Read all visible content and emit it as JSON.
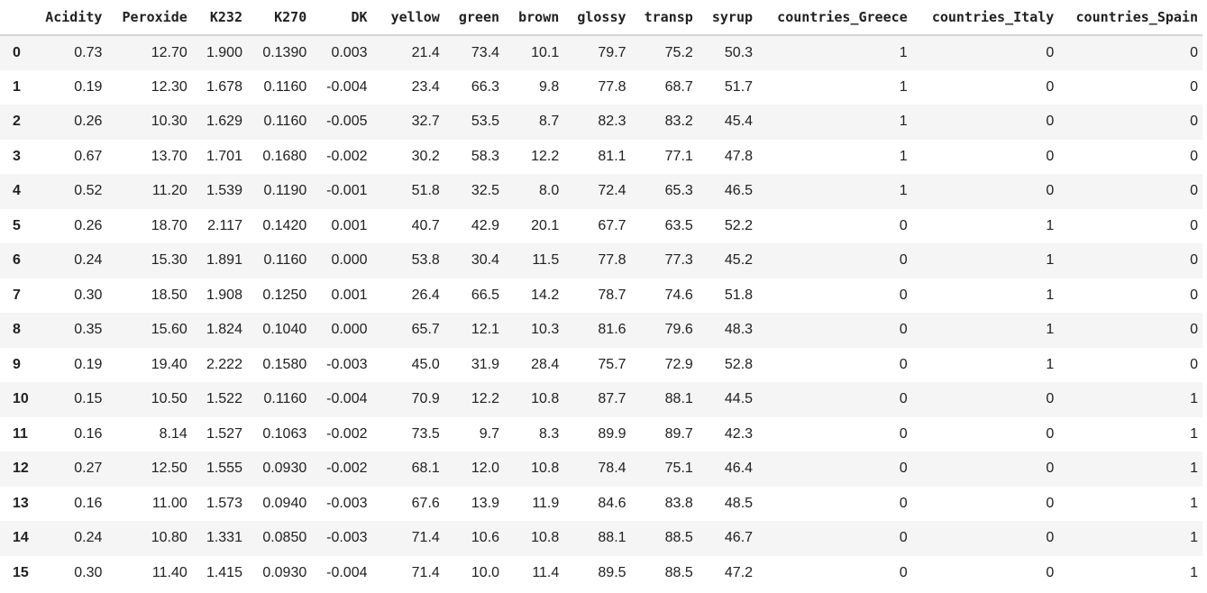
{
  "columns": [
    "",
    "Acidity",
    "Peroxide",
    "K232",
    "K270",
    "DK",
    "yellow",
    "green",
    "brown",
    "glossy",
    "transp",
    "syrup",
    "countries_Greece",
    "countries_Italy",
    "countries_Spain"
  ],
  "rows": [
    {
      "index": "0",
      "cells": [
        "0.73",
        "12.70",
        "1.900",
        "0.1390",
        "0.003",
        "21.4",
        "73.4",
        "10.1",
        "79.7",
        "75.2",
        "50.3",
        "1",
        "0",
        "0"
      ]
    },
    {
      "index": "1",
      "cells": [
        "0.19",
        "12.30",
        "1.678",
        "0.1160",
        "-0.004",
        "23.4",
        "66.3",
        "9.8",
        "77.8",
        "68.7",
        "51.7",
        "1",
        "0",
        "0"
      ]
    },
    {
      "index": "2",
      "cells": [
        "0.26",
        "10.30",
        "1.629",
        "0.1160",
        "-0.005",
        "32.7",
        "53.5",
        "8.7",
        "82.3",
        "83.2",
        "45.4",
        "1",
        "0",
        "0"
      ]
    },
    {
      "index": "3",
      "cells": [
        "0.67",
        "13.70",
        "1.701",
        "0.1680",
        "-0.002",
        "30.2",
        "58.3",
        "12.2",
        "81.1",
        "77.1",
        "47.8",
        "1",
        "0",
        "0"
      ]
    },
    {
      "index": "4",
      "cells": [
        "0.52",
        "11.20",
        "1.539",
        "0.1190",
        "-0.001",
        "51.8",
        "32.5",
        "8.0",
        "72.4",
        "65.3",
        "46.5",
        "1",
        "0",
        "0"
      ]
    },
    {
      "index": "5",
      "cells": [
        "0.26",
        "18.70",
        "2.117",
        "0.1420",
        "0.001",
        "40.7",
        "42.9",
        "20.1",
        "67.7",
        "63.5",
        "52.2",
        "0",
        "1",
        "0"
      ]
    },
    {
      "index": "6",
      "cells": [
        "0.24",
        "15.30",
        "1.891",
        "0.1160",
        "0.000",
        "53.8",
        "30.4",
        "11.5",
        "77.8",
        "77.3",
        "45.2",
        "0",
        "1",
        "0"
      ]
    },
    {
      "index": "7",
      "cells": [
        "0.30",
        "18.50",
        "1.908",
        "0.1250",
        "0.001",
        "26.4",
        "66.5",
        "14.2",
        "78.7",
        "74.6",
        "51.8",
        "0",
        "1",
        "0"
      ]
    },
    {
      "index": "8",
      "cells": [
        "0.35",
        "15.60",
        "1.824",
        "0.1040",
        "0.000",
        "65.7",
        "12.1",
        "10.3",
        "81.6",
        "79.6",
        "48.3",
        "0",
        "1",
        "0"
      ]
    },
    {
      "index": "9",
      "cells": [
        "0.19",
        "19.40",
        "2.222",
        "0.1580",
        "-0.003",
        "45.0",
        "31.9",
        "28.4",
        "75.7",
        "72.9",
        "52.8",
        "0",
        "1",
        "0"
      ]
    },
    {
      "index": "10",
      "cells": [
        "0.15",
        "10.50",
        "1.522",
        "0.1160",
        "-0.004",
        "70.9",
        "12.2",
        "10.8",
        "87.7",
        "88.1",
        "44.5",
        "0",
        "0",
        "1"
      ]
    },
    {
      "index": "11",
      "cells": [
        "0.16",
        "8.14",
        "1.527",
        "0.1063",
        "-0.002",
        "73.5",
        "9.7",
        "8.3",
        "89.9",
        "89.7",
        "42.3",
        "0",
        "0",
        "1"
      ]
    },
    {
      "index": "12",
      "cells": [
        "0.27",
        "12.50",
        "1.555",
        "0.0930",
        "-0.002",
        "68.1",
        "12.0",
        "10.8",
        "78.4",
        "75.1",
        "46.4",
        "0",
        "0",
        "1"
      ]
    },
    {
      "index": "13",
      "cells": [
        "0.16",
        "11.00",
        "1.573",
        "0.0940",
        "-0.003",
        "67.6",
        "13.9",
        "11.9",
        "84.6",
        "83.8",
        "48.5",
        "0",
        "0",
        "1"
      ]
    },
    {
      "index": "14",
      "cells": [
        "0.24",
        "10.80",
        "1.331",
        "0.0850",
        "-0.003",
        "71.4",
        "10.6",
        "10.8",
        "88.1",
        "88.5",
        "46.7",
        "0",
        "0",
        "1"
      ]
    },
    {
      "index": "15",
      "cells": [
        "0.30",
        "11.40",
        "1.415",
        "0.0930",
        "-0.004",
        "71.4",
        "10.0",
        "11.4",
        "89.5",
        "88.5",
        "47.2",
        "0",
        "0",
        "1"
      ]
    }
  ]
}
